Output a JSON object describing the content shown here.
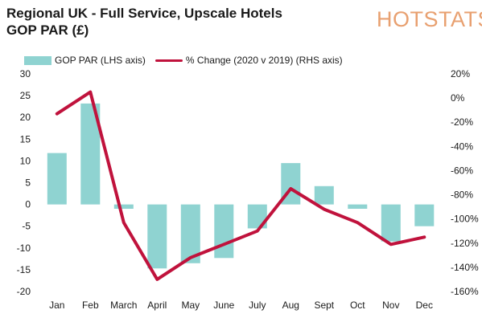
{
  "header": {
    "title_line1": "Regional UK - Full Service, Upscale Hotels",
    "title_line2": "GOP PAR (£)",
    "brand": "HOTSTATS"
  },
  "colors": {
    "bar": "#8fd3d1",
    "line": "#c0123c",
    "brand": "#e8a070"
  },
  "chart_data": {
    "type": "bar",
    "categories": [
      "Jan",
      "Feb",
      "March",
      "April",
      "May",
      "June",
      "July",
      "Aug",
      "Sept",
      "Oct",
      "Nov",
      "Dec"
    ],
    "series": [
      {
        "name": "GOP PAR (LHS axis)",
        "type": "bar",
        "axis": "left",
        "values": [
          11.8,
          23.2,
          -1.0,
          -14.7,
          -13.5,
          -12.3,
          -5.5,
          9.5,
          4.2,
          -1.0,
          -8.5,
          -5.0
        ]
      },
      {
        "name": "% Change (2020 v 2019) (RHS axis)",
        "type": "line",
        "axis": "right",
        "values": [
          -13,
          5,
          -103,
          -150,
          -132,
          -121,
          -110,
          -75,
          -92,
          -103,
          -121,
          -115
        ]
      }
    ],
    "y_left": {
      "min": -20,
      "max": 30,
      "step": 5,
      "ticks": [
        "30",
        "25",
        "20",
        "15",
        "10",
        "5",
        "0",
        "-5",
        "-10",
        "-15",
        "-20"
      ]
    },
    "y_right": {
      "min": -160,
      "max": 20,
      "step": 20,
      "ticks": [
        "20%",
        "0%",
        "-20%",
        "-40%",
        "-60%",
        "-80%",
        "-100%",
        "-120%",
        "-140%",
        "-160%"
      ]
    },
    "grid": false,
    "legend_position": "top"
  }
}
